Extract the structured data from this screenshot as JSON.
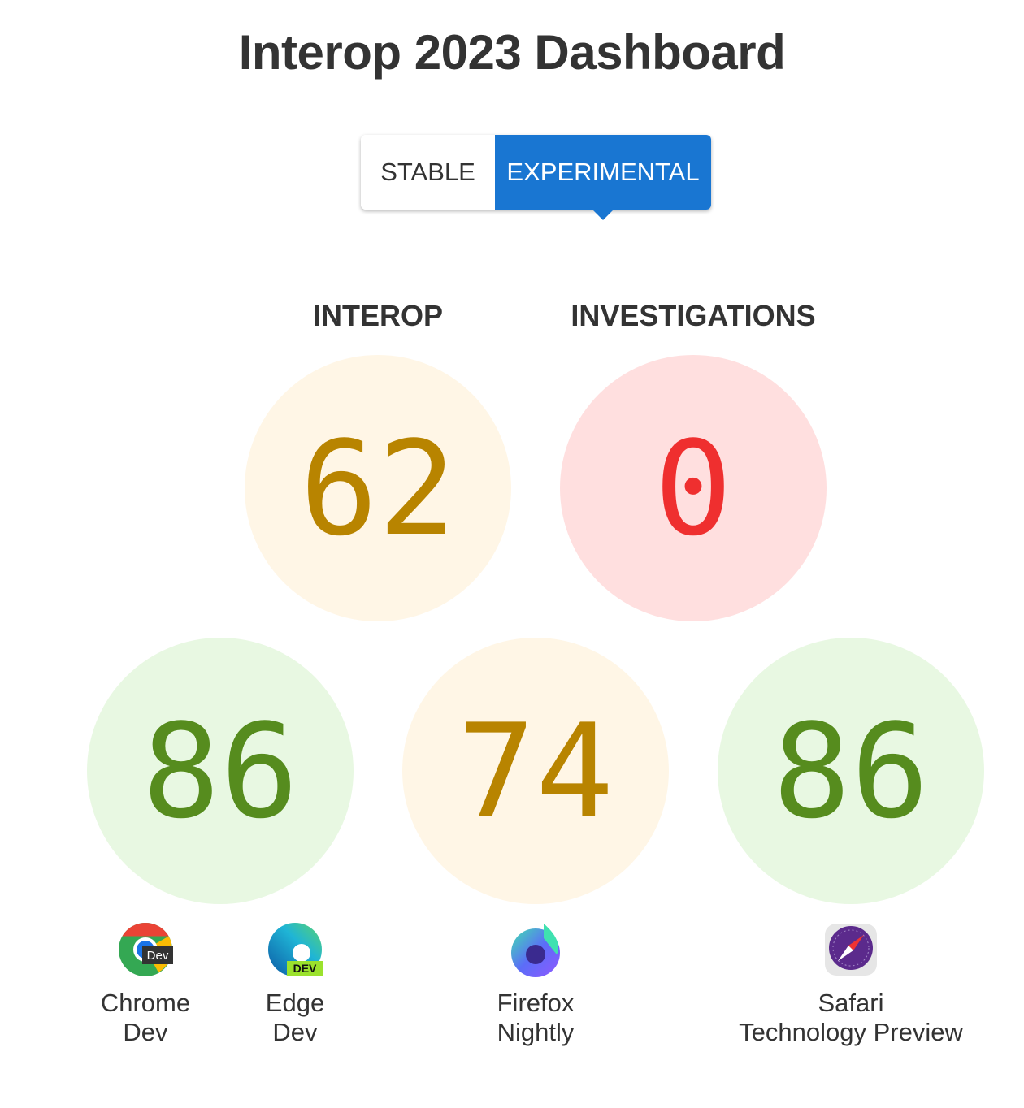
{
  "title": "Interop 2023 Dashboard",
  "toggle": {
    "stable": "STABLE",
    "experimental": "EXPERIMENTAL",
    "selected": "EXPERIMENTAL"
  },
  "summary": {
    "interop": {
      "label": "INTEROP",
      "score": "62"
    },
    "investigations": {
      "label": "INVESTIGATIONS",
      "score": "0"
    }
  },
  "browsers": [
    {
      "line1": "Chrome",
      "line2": "Dev",
      "icon": "chrome-dev-icon"
    },
    {
      "line1": "Edge",
      "line2": "Dev",
      "icon": "edge-dev-icon",
      "badge": "DEV"
    },
    {
      "line1": "Firefox",
      "line2": "Nightly",
      "icon": "firefox-nightly-icon"
    },
    {
      "line1": "Safari",
      "line2": "Technology Preview",
      "icon": "safari-technology-preview-icon"
    }
  ],
  "chrome_badge": "Dev",
  "scores": [
    {
      "browser": "Chrome Dev / Edge Dev",
      "score": "86"
    },
    {
      "browser": "Firefox Nightly",
      "score": "74"
    },
    {
      "browser": "Safari Technology Preview",
      "score": "86"
    }
  ],
  "colors": {
    "accent": "#1976d2",
    "green": "#568c1e",
    "yellow": "#b88400",
    "red": "#ef2f2f"
  }
}
